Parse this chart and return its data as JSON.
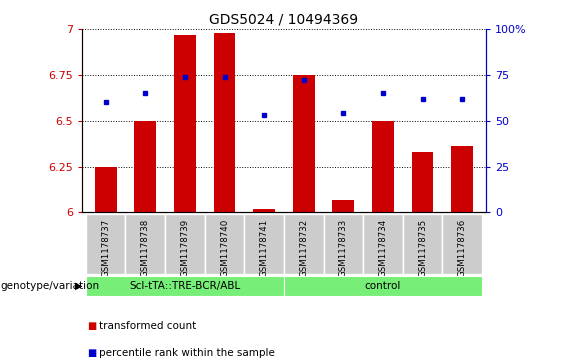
{
  "title": "GDS5024 / 10494369",
  "samples": [
    "GSM1178737",
    "GSM1178738",
    "GSM1178739",
    "GSM1178740",
    "GSM1178741",
    "GSM1178732",
    "GSM1178733",
    "GSM1178734",
    "GSM1178735",
    "GSM1178736"
  ],
  "bar_values": [
    6.25,
    6.5,
    6.97,
    6.98,
    6.02,
    6.75,
    6.07,
    6.5,
    6.33,
    6.36
  ],
  "dot_values": [
    60,
    65,
    74,
    74,
    53,
    72,
    54,
    65,
    62,
    62
  ],
  "bar_color": "#cc0000",
  "dot_color": "#0000cc",
  "ymin": 6.0,
  "ymax": 7.0,
  "yticks": [
    6.0,
    6.25,
    6.5,
    6.75,
    7.0
  ],
  "ytick_labels": [
    "6",
    "6.25",
    "6.5",
    "6.75",
    "7"
  ],
  "right_yticks": [
    0,
    25,
    50,
    75,
    100
  ],
  "right_ytick_labels": [
    "0",
    "25",
    "50",
    "75",
    "100%"
  ],
  "group1_label": "Scl-tTA::TRE-BCR/ABL",
  "group2_label": "control",
  "group1_indices": [
    0,
    1,
    2,
    3,
    4
  ],
  "group2_indices": [
    5,
    6,
    7,
    8,
    9
  ],
  "genotype_label": "genotype/variation",
  "legend1_label": "transformed count",
  "legend2_label": "percentile rank within the sample",
  "bg_color": "#cccccc",
  "group_bg_color": "#77ee77",
  "plot_bg_color": "#ffffff"
}
